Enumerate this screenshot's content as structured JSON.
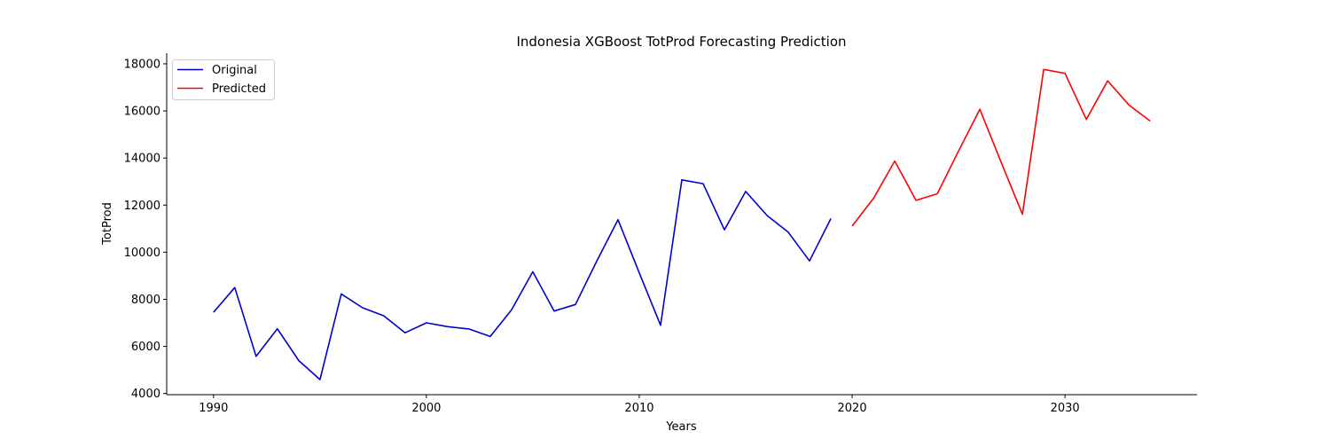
{
  "chart_data": {
    "type": "line",
    "title": "Indonesia XGBoost TotProd Forecasting Prediction",
    "xlabel": "Years",
    "ylabel": "TotProd",
    "xlim": [
      1987.8,
      2036.2
    ],
    "ylim": [
      3950,
      18450
    ],
    "xticks": [
      1990,
      2000,
      2010,
      2020,
      2030
    ],
    "yticks": [
      4000,
      6000,
      8000,
      10000,
      12000,
      14000,
      16000,
      18000
    ],
    "grid": false,
    "legend_position": "top-left",
    "series": [
      {
        "name": "Original",
        "color": "#0000cd",
        "x": [
          1990,
          1991,
          1992,
          1993,
          1994,
          1995,
          1996,
          1997,
          1998,
          1999,
          2000,
          2001,
          2002,
          2003,
          2004,
          2005,
          2006,
          2007,
          2008,
          2009,
          2010,
          2011,
          2012,
          2013,
          2014,
          2015,
          2016,
          2017,
          2018,
          2019
        ],
        "y": [
          7450,
          8500,
          5580,
          6750,
          5400,
          4590,
          8230,
          7640,
          7300,
          6580,
          7000,
          6840,
          6740,
          6420,
          7550,
          9170,
          7500,
          7780,
          9620,
          11380,
          9120,
          6900,
          13070,
          12910,
          10950,
          12580,
          11560,
          10850,
          9630,
          11430
        ]
      },
      {
        "name": "Predicted",
        "color": "#ff0000",
        "x": [
          2020,
          2021,
          2022,
          2023,
          2024,
          2025,
          2026,
          2027,
          2028,
          2029,
          2030,
          2031,
          2032,
          2033,
          2034
        ],
        "y": [
          11110,
          12280,
          13870,
          12200,
          12480,
          14300,
          16070,
          13820,
          11610,
          17760,
          17600,
          15640,
          17280,
          16250,
          15570
        ]
      }
    ]
  }
}
